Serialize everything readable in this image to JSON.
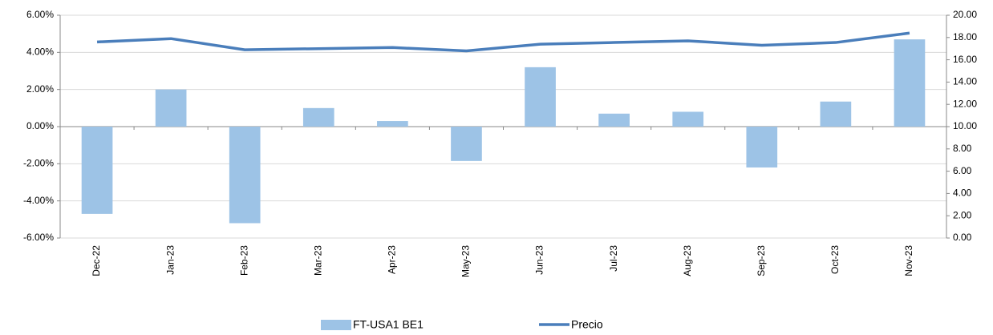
{
  "chart_data": {
    "type": "bar-line",
    "categories": [
      "Dec-22",
      "Jan-23",
      "Feb-23",
      "Mar-23",
      "Apr-23",
      "May-23",
      "Jun-23",
      "Jul-23",
      "Aug-23",
      "Sep-23",
      "Oct-23",
      "Nov-23"
    ],
    "series": [
      {
        "name": "FT-USA1 BE1",
        "type": "bar",
        "color": "#9dc3e6",
        "values": [
          -4.7,
          2.0,
          -5.2,
          1.0,
          0.3,
          -1.85,
          3.2,
          0.7,
          0.8,
          -2.2,
          1.35,
          4.7
        ]
      },
      {
        "name": "Precio",
        "type": "line",
        "axis": "y2",
        "color": "#4a7ebb",
        "values": [
          17.6,
          17.9,
          16.9,
          17.0,
          17.1,
          16.8,
          17.4,
          17.55,
          17.7,
          17.3,
          17.55,
          18.4
        ]
      }
    ],
    "ylim": [
      -6,
      6
    ],
    "yticks": [
      {
        "value": -6,
        "label": "-6.00%"
      },
      {
        "value": -4,
        "label": "-4.00%"
      },
      {
        "value": -2,
        "label": "-2.00%"
      },
      {
        "value": 0,
        "label": "0.00%"
      },
      {
        "value": 2,
        "label": "2.00%"
      },
      {
        "value": 4,
        "label": "4.00%"
      },
      {
        "value": 6,
        "label": "6.00%"
      }
    ],
    "y2lim": [
      0,
      20
    ],
    "y2ticks": [
      {
        "value": 0,
        "label": "0.00"
      },
      {
        "value": 2,
        "label": "2.00"
      },
      {
        "value": 4,
        "label": "4.00"
      },
      {
        "value": 6,
        "label": "6.00"
      },
      {
        "value": 8,
        "label": "8.00"
      },
      {
        "value": 10,
        "label": "10.00"
      },
      {
        "value": 12,
        "label": "12.00"
      },
      {
        "value": 14,
        "label": "14.00"
      },
      {
        "value": 16,
        "label": "16.00"
      },
      {
        "value": 18,
        "label": "18.00"
      },
      {
        "value": 20,
        "label": "20.00"
      }
    ],
    "grid": true,
    "legend": "bottom"
  }
}
